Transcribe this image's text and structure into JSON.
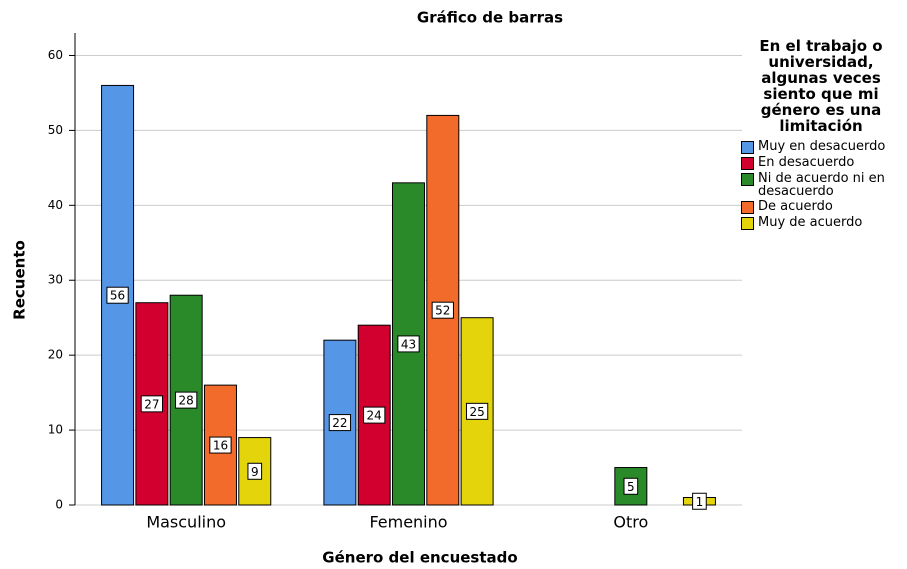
{
  "chart_data": {
    "type": "bar",
    "title": "Gráfico de barras",
    "x_label": "Género del encuestado",
    "y_label": "Recuento",
    "legend_title": "En el trabajo o universidad, algunas veces siento que mi género es una limitación",
    "categories": [
      "Masculino",
      "Femenino",
      "Otro"
    ],
    "series": [
      {
        "name": "Muy en desacuerdo",
        "color": "#5596e6",
        "values": [
          56,
          22,
          null
        ]
      },
      {
        "name": "En desacuerdo",
        "color": "#d2002e",
        "values": [
          27,
          24,
          null
        ]
      },
      {
        "name": "Ni de acuerdo ni en desacuerdo",
        "color": "#2a8a2a",
        "values": [
          28,
          43,
          5
        ]
      },
      {
        "name": "De acuerdo",
        "color": "#f26b2a",
        "values": [
          16,
          52,
          null
        ]
      },
      {
        "name": "Muy de acuerdo",
        "color": "#e3d40c",
        "values": [
          9,
          25,
          1
        ]
      }
    ],
    "ylim": [
      0,
      63
    ],
    "yticks": [
      0,
      10,
      20,
      30,
      40,
      50,
      60
    ],
    "grid": true,
    "legend": "right"
  }
}
